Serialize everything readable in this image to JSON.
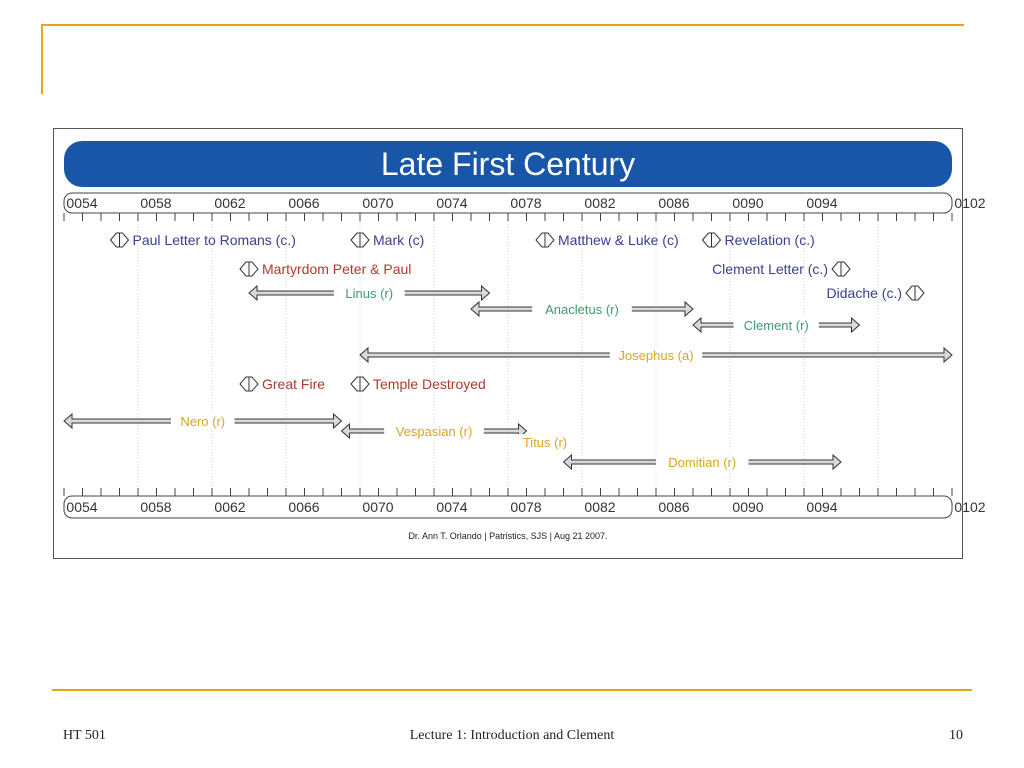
{
  "slide": {
    "footer_left": "HT 501",
    "footer_center": "Lecture 1: Introduction and Clement",
    "footer_right": "10",
    "accent_color": "#E8A317"
  },
  "timeline": {
    "title": "Late First Century",
    "banner_color": "#1A56A8",
    "credit": "Dr. Ann T. Orlando | Patristics, SJS | Aug 21 2007.",
    "year_labels": [
      "0054",
      "0058",
      "0062",
      "0066",
      "0070",
      "0074",
      "0078",
      "0082",
      "0086",
      "0090",
      "0094",
      "0102"
    ],
    "colors": {
      "blue": "#3B3F8C",
      "red": "#B03A2E",
      "green": "#3F9A6E",
      "gold": "#D9A521"
    },
    "events": [
      {
        "label": "Paul Letter to Romans (c.)",
        "year": 57,
        "color": "blue",
        "row": 1
      },
      {
        "label": "Mark (c)",
        "year": 70,
        "color": "blue",
        "row": 1
      },
      {
        "label": "Matthew & Luke (c)",
        "year": 80,
        "color": "blue",
        "row": 1
      },
      {
        "label": "Revelation (c.)",
        "year": 89,
        "color": "blue",
        "row": 1
      },
      {
        "label": "Martyrdom Peter & Paul",
        "year": 64,
        "color": "red",
        "row": 2
      },
      {
        "label": "Clement Letter (c.)",
        "year": 96,
        "color": "blue",
        "row": 2,
        "label_side": "left"
      },
      {
        "label": "Didache (c.)",
        "year": 100,
        "color": "blue",
        "row": 3,
        "label_side": "left"
      },
      {
        "label": "Great Fire",
        "year": 64,
        "color": "red",
        "row": 7
      },
      {
        "label": "Temple Destroyed",
        "year": 70,
        "color": "red",
        "row": 7
      }
    ],
    "ranges": [
      {
        "label": "Linus (r)",
        "start": 64,
        "end": 77,
        "color": "green",
        "row": 3
      },
      {
        "label": "Anacletus (r)",
        "start": 76,
        "end": 88,
        "color": "green",
        "row": 4
      },
      {
        "label": "Clement (r)",
        "start": 88,
        "end": 97,
        "color": "green",
        "row": 5
      },
      {
        "label": "Josephus (a)",
        "start": 70,
        "end": 102,
        "color": "gold",
        "row": 6
      },
      {
        "label": "Nero (r)",
        "start": 54,
        "end": 69,
        "color": "gold",
        "row": 8
      },
      {
        "label": "Vespasian (r)",
        "start": 69,
        "end": 79,
        "color": "gold",
        "row": 9
      },
      {
        "label": "Titus (r)",
        "start": 79,
        "end": 81,
        "color": "gold",
        "row": 10
      },
      {
        "label": "Domitian (r)",
        "start": 81,
        "end": 96,
        "color": "gold",
        "row": 11
      }
    ]
  }
}
